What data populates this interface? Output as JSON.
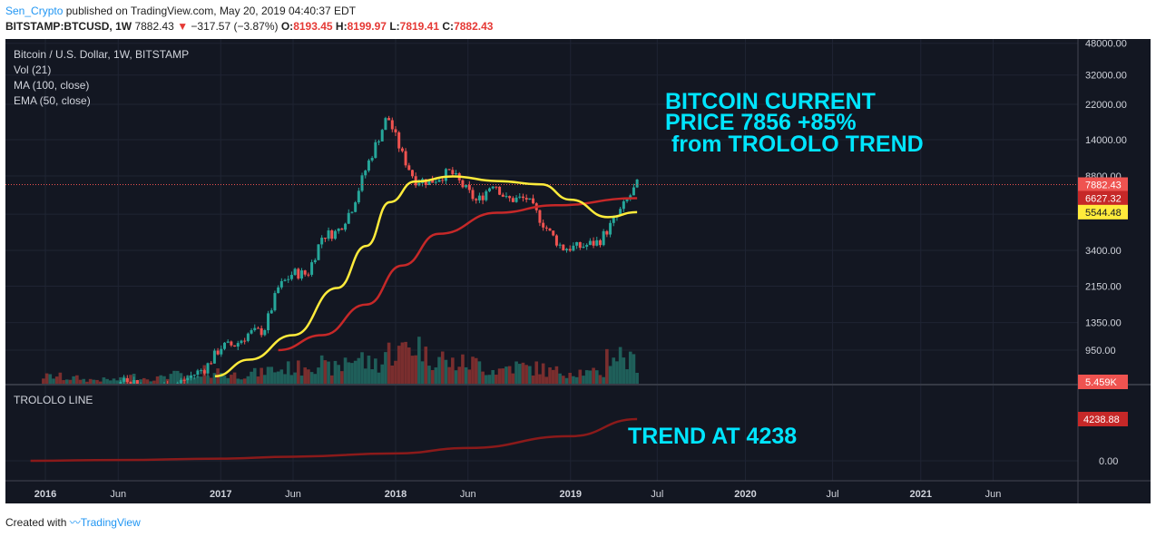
{
  "header": {
    "author": "Sen_Crypto",
    "published": "published on TradingView.com, May 20, 2019 04:40:37 EDT",
    "symbol": "BITSTAMP:BTCUSD, 1W",
    "last": "7882.43",
    "change": "−317.57 (−3.87%)",
    "o_label": "O:",
    "o": "8193.45",
    "h_label": "H:",
    "h": "8199.97",
    "l_label": "L:",
    "l": "7819.41",
    "c_label": "C:",
    "c": "7882.43"
  },
  "legend": {
    "title": "Bitcoin / U.S. Dollar, 1W, BITSTAMP",
    "vol": "Vol (21)",
    "ma": "MA (100, close)",
    "ema": "EMA (50, close)"
  },
  "annotations": {
    "main_line1": "BITCOIN CURRENT",
    "main_line2": "PRICE 7856 +85%",
    "main_line3": " from TROLOLO TREND",
    "trend": "TREND AT 4238"
  },
  "footer": {
    "created": "Created with",
    "brand": "TradingView"
  },
  "chart_data": [
    {
      "type": "line",
      "title": "Bitcoin / U.S. Dollar, 1W, BITSTAMP",
      "scale": "log",
      "y_ticks": [
        "48000.00",
        "32000.00",
        "22000.00",
        "14000.00",
        "8800.00",
        "5400.00",
        "3400.00",
        "2150.00",
        "1350.00",
        "950.00"
      ],
      "x_ticks": [
        "2016",
        "Jun",
        "2017",
        "Jun",
        "2018",
        "Jun",
        "2019",
        "Jul",
        "2020",
        "Jul",
        "2021",
        "Jun"
      ],
      "price_labels": [
        {
          "value": "7882.43",
          "color": "#ef5350"
        },
        {
          "value": "6627.32",
          "color": "#c62828"
        },
        {
          "value": "5544.48",
          "color": "#ffeb3b"
        },
        {
          "value": "5.459K",
          "color": "#ef5350"
        }
      ],
      "grid": true,
      "candles_close": [
        [
          "2015-12-28",
          430
        ],
        [
          "2016-03-01",
          415
        ],
        [
          "2016-05-01",
          450
        ],
        [
          "2016-06-15",
          680
        ],
        [
          "2016-08-01",
          570
        ],
        [
          "2016-10-01",
          615
        ],
        [
          "2016-12-01",
          760
        ],
        [
          "2017-01-01",
          990
        ],
        [
          "2017-02-01",
          1020
        ],
        [
          "2017-03-01",
          1180
        ],
        [
          "2017-04-01",
          1220
        ],
        [
          "2017-05-01",
          2100
        ],
        [
          "2017-06-01",
          2550
        ],
        [
          "2017-07-01",
          2500
        ],
        [
          "2017-08-01",
          4100
        ],
        [
          "2017-09-01",
          4300
        ],
        [
          "2017-10-01",
          5800
        ],
        [
          "2017-11-01",
          9800
        ],
        [
          "2017-12-15",
          19000
        ],
        [
          "2018-01-15",
          11500
        ],
        [
          "2018-02-10",
          8400
        ],
        [
          "2018-03-15",
          8200
        ],
        [
          "2018-04-25",
          9300
        ],
        [
          "2018-05-20",
          7800
        ],
        [
          "2018-06-20",
          6300
        ],
        [
          "2018-07-25",
          8200
        ],
        [
          "2018-08-20",
          6500
        ],
        [
          "2018-10-01",
          6600
        ],
        [
          "2018-11-20",
          4200
        ],
        [
          "2018-12-15",
          3500
        ],
        [
          "2019-01-20",
          3550
        ],
        [
          "2019-03-01",
          3800
        ],
        [
          "2019-04-05",
          5100
        ],
        [
          "2019-05-20",
          7882
        ]
      ],
      "series": [
        {
          "name": "MA (100, close)",
          "color": "#c62828",
          "values": [
            [
              "2017-05-01",
              950
            ],
            [
              "2017-08-01",
              1150
            ],
            [
              "2017-11-01",
              1700
            ],
            [
              "2018-01-15",
              2800
            ],
            [
              "2018-04-01",
              4200
            ],
            [
              "2018-08-01",
              5500
            ],
            [
              "2018-12-01",
              6050
            ],
            [
              "2019-05-20",
              6627
            ]
          ]
        },
        {
          "name": "EMA (50, close)",
          "color": "#ffeb3b",
          "values": [
            [
              "2016-12-20",
              680
            ],
            [
              "2017-03-01",
              840
            ],
            [
              "2017-06-01",
              1150
            ],
            [
              "2017-09-01",
              2100
            ],
            [
              "2017-11-01",
              3600
            ],
            [
              "2017-12-20",
              6300
            ],
            [
              "2018-02-10",
              8200
            ],
            [
              "2018-05-01",
              8750
            ],
            [
              "2018-08-01",
              8250
            ],
            [
              "2018-11-01",
              7900
            ],
            [
              "2019-01-01",
              6500
            ],
            [
              "2019-03-20",
              5200
            ],
            [
              "2019-05-20",
              5544
            ]
          ]
        }
      ],
      "volume_values": [
        0.05,
        0.04,
        0.03,
        0.03,
        0.05,
        0.04,
        0.06,
        0.04,
        0.08,
        0.06,
        0.07,
        0.09,
        0.1,
        0.13,
        0.1,
        0.16,
        0.13,
        0.2,
        0.24,
        0.17,
        0.13,
        0.13,
        0.09,
        0.11,
        0.1,
        0.08,
        0.08,
        0.07,
        0.18,
        0.14,
        0.08,
        0.1,
        0.13,
        0.2
      ]
    },
    {
      "type": "line",
      "title": "TROLOLO LINE",
      "y_ticks": [
        "0.00"
      ],
      "price_labels": [
        {
          "value": "4238.88",
          "color": "#c62828"
        }
      ],
      "series": [
        {
          "name": "TROLOLO LINE",
          "color": "#b71c1c",
          "values": [
            [
              "2015-12-01",
              3
            ],
            [
              "2016-06-01",
              80
            ],
            [
              "2017-01-01",
              220
            ],
            [
              "2017-06-01",
              420
            ],
            [
              "2018-01-01",
              750
            ],
            [
              "2018-06-01",
              1300
            ],
            [
              "2019-01-01",
              2500
            ],
            [
              "2019-05-20",
              4238.88
            ]
          ]
        }
      ]
    }
  ]
}
